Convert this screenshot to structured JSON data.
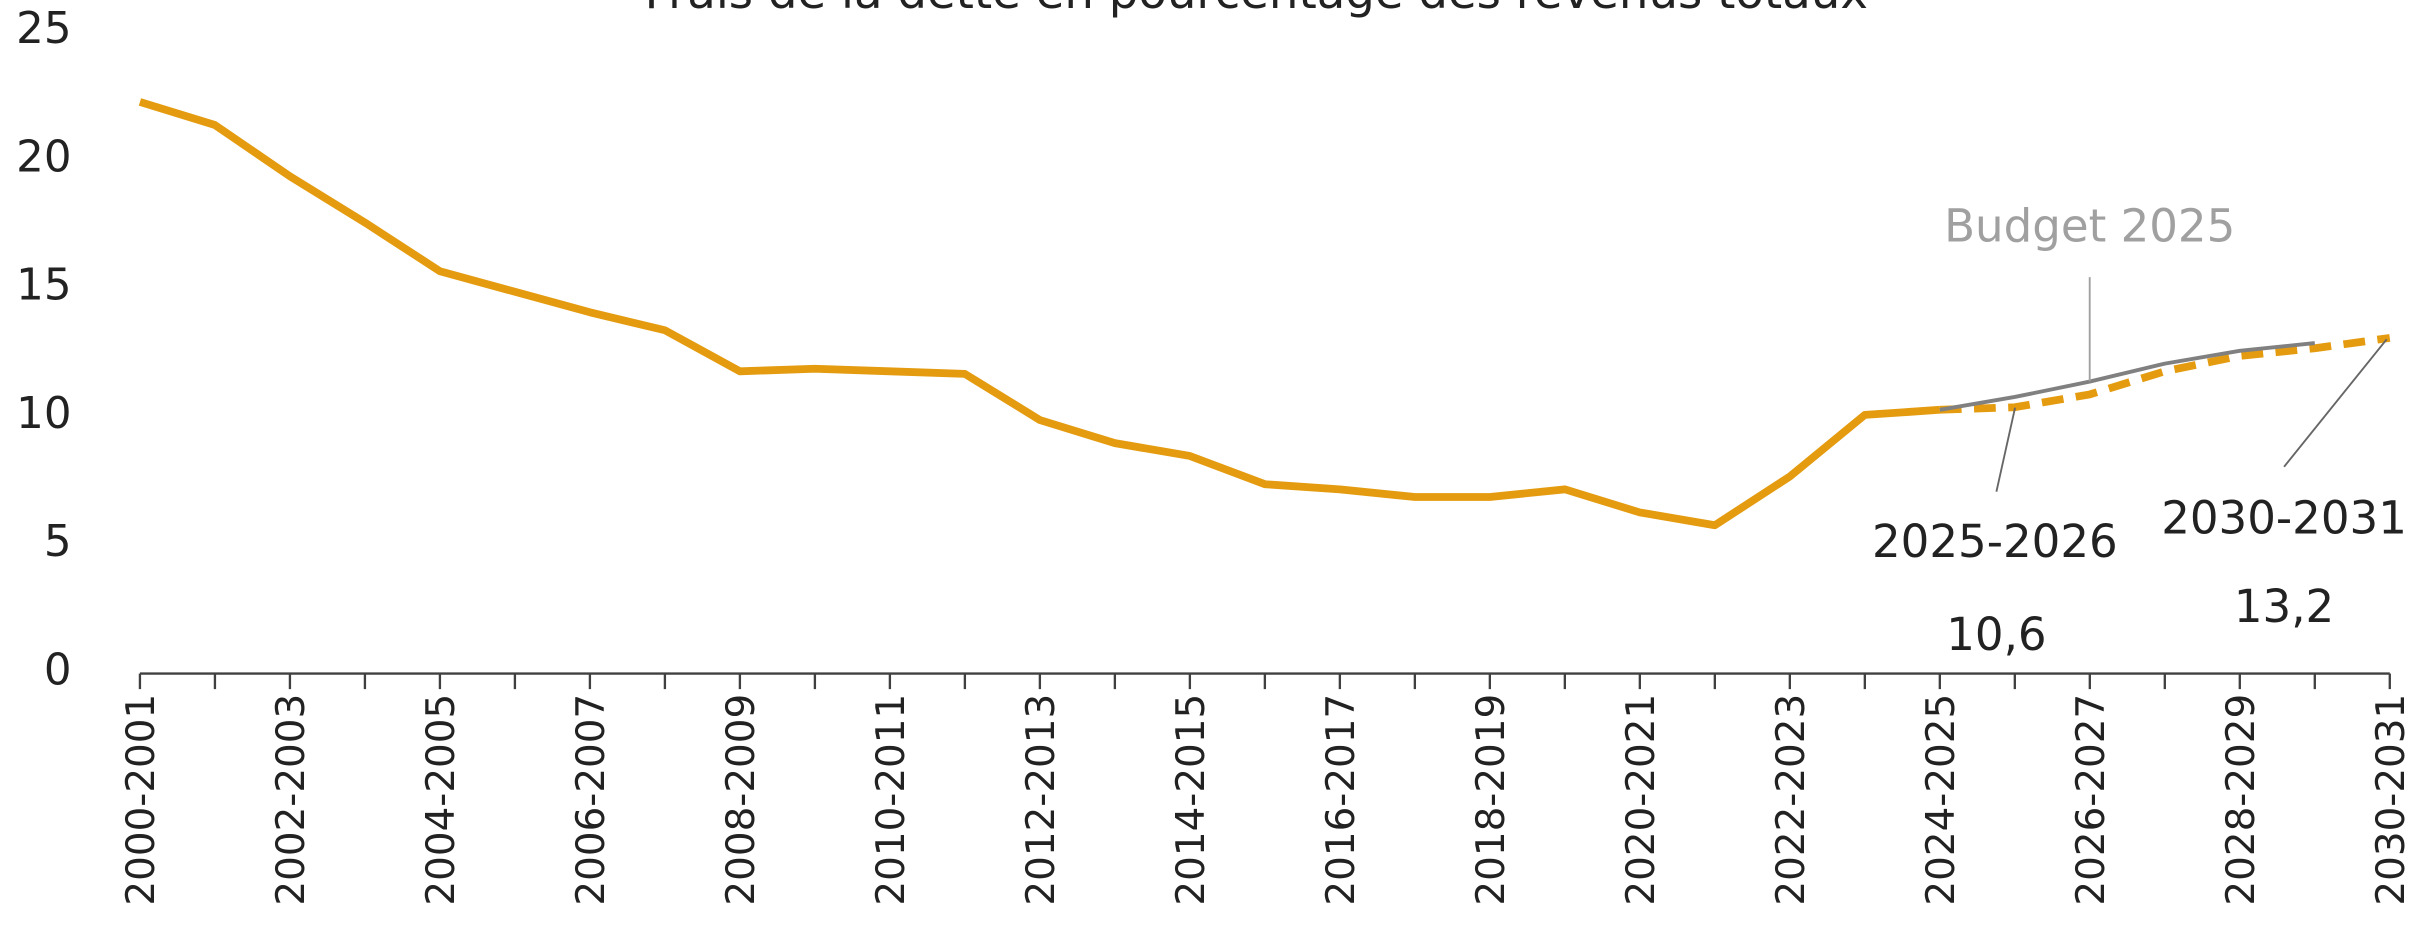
{
  "chart_data": {
    "type": "line",
    "title": "Frais de la dette en pourcentage des revenus totaux",
    "categories": [
      "2000-2001",
      null,
      "2002-2003",
      null,
      "2004-2005",
      null,
      "2006-2007",
      null,
      "2008-2009",
      null,
      "2010-2011",
      null,
      "2012-2013",
      null,
      "2014-2015",
      null,
      "2016-2017",
      null,
      "2018-2019",
      null,
      "2020-2021",
      null,
      "2022-2023",
      null,
      "2024-2025",
      null,
      "2026-2027",
      null,
      "2028-2029",
      null,
      "2030-2031"
    ],
    "series": [
      {
        "color": "#e49b0f",
        "style": "solid",
        "values": [
          22.1,
          21.2,
          19.2,
          17.4,
          15.5,
          14.7,
          13.9,
          13.2,
          11.6,
          11.7,
          11.6,
          11.5,
          9.7,
          8.8,
          8.3,
          7.2,
          7.0,
          6.7,
          6.7,
          7.0,
          6.1,
          5.6,
          7.5,
          9.9,
          10.1,
          null,
          null,
          null,
          null,
          null,
          null
        ]
      },
      {
        "color": "#e49b0f",
        "style": "dashed",
        "values": [
          null,
          null,
          null,
          null,
          null,
          null,
          null,
          null,
          null,
          null,
          null,
          null,
          null,
          null,
          null,
          null,
          null,
          null,
          null,
          null,
          null,
          null,
          null,
          null,
          10.1,
          10.2,
          10.7,
          11.6,
          12.2,
          12.5,
          12.9
        ]
      },
      {
        "color": "#808080",
        "style": "thin",
        "values": [
          null,
          null,
          null,
          null,
          null,
          null,
          null,
          null,
          null,
          null,
          null,
          null,
          null,
          null,
          null,
          null,
          null,
          null,
          null,
          null,
          null,
          null,
          null,
          null,
          10.1,
          10.6,
          11.2,
          11.9,
          12.4,
          12.7,
          null
        ]
      }
    ],
    "annotations": [
      "Budget 2025",
      "2025-2026",
      "10,6",
      "2030-2031",
      "13,2"
    ],
    "ylim": [
      0,
      25
    ],
    "yticks": [
      0,
      5,
      10,
      15,
      20,
      25
    ],
    "grid": false
  }
}
